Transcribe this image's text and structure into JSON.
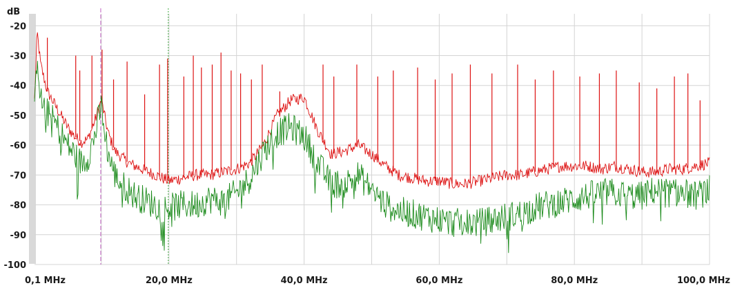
{
  "chart_data": {
    "type": "line",
    "ylabel": "dB",
    "xlabel": "",
    "ylim": [
      -100,
      -16
    ],
    "xlim": [
      0.1,
      100
    ],
    "grid": true,
    "y_ticks": [
      -20,
      -30,
      -40,
      -50,
      -60,
      -70,
      -80,
      -90,
      -100
    ],
    "y_tick_labels": [
      "-20",
      "-30",
      "-40",
      "-50",
      "-60",
      "-70",
      "-80",
      "-90",
      "-100"
    ],
    "x_ticks": [
      0.1,
      20,
      40,
      60,
      80,
      100
    ],
    "x_tick_labels": [
      "0,1 MHz",
      "20,0 MHz",
      "40,0 MHz",
      "60,0 MHz",
      "80,0 MHz",
      "100,0 MHz"
    ],
    "markers": [
      {
        "x": 9.9,
        "color": "#c060c0",
        "style": "dashed"
      },
      {
        "x": 19.9,
        "color": "#44aa44",
        "style": "dotted"
      }
    ],
    "series": [
      {
        "color": "#dd1111",
        "x": [
          0.1,
          0.5,
          1,
          2,
          3,
          4,
          5,
          6,
          7,
          8,
          9,
          10,
          11,
          12,
          13,
          14,
          15,
          16,
          17,
          18,
          19,
          20,
          22,
          24,
          26,
          28,
          30,
          32,
          34,
          36,
          38,
          40,
          42,
          44,
          46,
          48,
          50,
          52,
          54,
          56,
          58,
          60,
          62,
          64,
          66,
          68,
          70,
          72,
          74,
          76,
          78,
          80,
          82,
          84,
          86,
          88,
          90,
          92,
          94,
          96,
          98,
          100
        ],
        "values": [
          -45,
          -22,
          -33,
          -42,
          -46,
          -50,
          -54,
          -57,
          -59,
          -58,
          -52,
          -45,
          -56,
          -62,
          -64,
          -66,
          -67,
          -68,
          -69,
          -70,
          -71,
          -72,
          -71,
          -70,
          -70,
          -69,
          -68,
          -66,
          -60,
          -50,
          -45,
          -44,
          -55,
          -63,
          -62,
          -60,
          -63,
          -67,
          -70,
          -71,
          -72,
          -72,
          -73,
          -73,
          -72,
          -71,
          -70,
          -70,
          -69,
          -68,
          -67,
          -67,
          -67,
          -68,
          -67,
          -68,
          -69,
          -69,
          -68,
          -68,
          -67,
          -66
        ],
        "spikes": [
          {
            "x": 2,
            "value": -24
          },
          {
            "x": 6.2,
            "value": -30
          },
          {
            "x": 6.8,
            "value": -35
          },
          {
            "x": 8.6,
            "value": -30
          },
          {
            "x": 10.1,
            "value": -28
          },
          {
            "x": 11.8,
            "value": -38
          },
          {
            "x": 13.8,
            "value": -32
          },
          {
            "x": 16.4,
            "value": -43
          },
          {
            "x": 18.6,
            "value": -33
          },
          {
            "x": 19.8,
            "value": -31
          },
          {
            "x": 22.2,
            "value": -37
          },
          {
            "x": 23.6,
            "value": -30
          },
          {
            "x": 24.8,
            "value": -34
          },
          {
            "x": 26.4,
            "value": -33
          },
          {
            "x": 27.7,
            "value": -29
          },
          {
            "x": 29.2,
            "value": -35
          },
          {
            "x": 30.6,
            "value": -36
          },
          {
            "x": 32.2,
            "value": -38
          },
          {
            "x": 33.8,
            "value": -33
          },
          {
            "x": 36.4,
            "value": -42
          },
          {
            "x": 42.8,
            "value": -33
          },
          {
            "x": 44.4,
            "value": -37
          },
          {
            "x": 47.8,
            "value": -33
          },
          {
            "x": 50.9,
            "value": -37
          },
          {
            "x": 53.2,
            "value": -35
          },
          {
            "x": 56.8,
            "value": -34
          },
          {
            "x": 59.4,
            "value": -38
          },
          {
            "x": 61.9,
            "value": -36
          },
          {
            "x": 64.6,
            "value": -33
          },
          {
            "x": 67.8,
            "value": -36
          },
          {
            "x": 71.6,
            "value": -33
          },
          {
            "x": 74.2,
            "value": -38
          },
          {
            "x": 76.9,
            "value": -35
          },
          {
            "x": 80.8,
            "value": -37
          },
          {
            "x": 83.7,
            "value": -36
          },
          {
            "x": 86.2,
            "value": -35
          },
          {
            "x": 89.6,
            "value": -39
          },
          {
            "x": 92.2,
            "value": -41
          },
          {
            "x": 94.8,
            "value": -37
          },
          {
            "x": 96.8,
            "value": -36
          },
          {
            "x": 98.6,
            "value": -45
          }
        ]
      },
      {
        "color": "#1a8a1a",
        "x": [
          0.1,
          0.5,
          1,
          2,
          3,
          4,
          5,
          6,
          7,
          8,
          9,
          10,
          11,
          12,
          13,
          14,
          15,
          16,
          17,
          18,
          19,
          20,
          22,
          24,
          26,
          28,
          30,
          32,
          34,
          36,
          38,
          40,
          42,
          44,
          46,
          48,
          50,
          52,
          54,
          56,
          58,
          60,
          62,
          64,
          66,
          68,
          70,
          72,
          74,
          76,
          78,
          80,
          82,
          84,
          86,
          88,
          90,
          92,
          94,
          96,
          98,
          100
        ],
        "values": [
          -50,
          -28,
          -45,
          -49,
          -52,
          -56,
          -60,
          -63,
          -66,
          -64,
          -57,
          -47,
          -63,
          -70,
          -73,
          -75,
          -77,
          -78,
          -79,
          -80,
          -81,
          -81,
          -80,
          -80,
          -78,
          -79,
          -76,
          -71,
          -62,
          -56,
          -54,
          -57,
          -66,
          -73,
          -73,
          -70,
          -75,
          -80,
          -82,
          -83,
          -84,
          -85,
          -86,
          -86,
          -86,
          -85,
          -84,
          -83,
          -81,
          -80,
          -79,
          -78,
          -77,
          -76,
          -76,
          -77,
          -77,
          -75,
          -76,
          -76,
          -77,
          -75
        ]
      }
    ]
  }
}
